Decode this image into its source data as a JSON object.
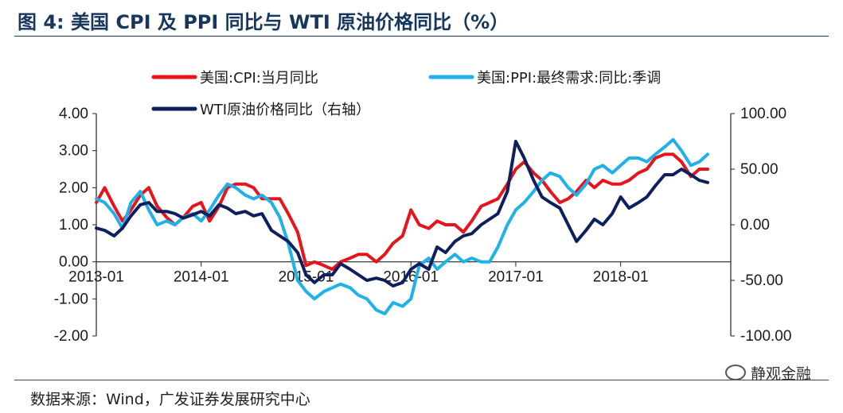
{
  "header": {
    "title": "图 4:  美国 CPI 及 PPI 同比与 WTI 原油价格同比（%）"
  },
  "footer": {
    "source": "数据来源：Wind，广发证券发展研究中心",
    "watermark": "静观金融"
  },
  "chart_data": {
    "type": "line",
    "title": "美国 CPI 及 PPI 同比与 WTI 原油价格同比（%）",
    "x_ticks": [
      "2013-01",
      "2014-01",
      "2015-01",
      "2016-01",
      "2017-01",
      "2018-01"
    ],
    "x_range": [
      2013.0,
      2018.9
    ],
    "left_axis": {
      "ylim": [
        -2.0,
        4.0
      ],
      "ticks": [
        "4.00",
        "3.00",
        "2.00",
        "1.00",
        "0.00",
        "-1.00",
        "-2.00"
      ]
    },
    "right_axis": {
      "ylim": [
        -100.0,
        100.0
      ],
      "ticks": [
        "100.00",
        "50.00",
        "0.00",
        "-50.00",
        "-100.00"
      ]
    },
    "legend_position": "top",
    "colors": {
      "cpi": "#e8141b",
      "ppi": "#1fb1e8",
      "wti": "#0d1f5c"
    },
    "series": [
      {
        "key": "cpi",
        "name": "美国:CPI:当月同比",
        "axis": "left",
        "x": [
          2013.0,
          2013.08,
          2013.17,
          2013.25,
          2013.33,
          2013.42,
          2013.5,
          2013.58,
          2013.67,
          2013.75,
          2013.83,
          2013.92,
          2014.0,
          2014.08,
          2014.17,
          2014.25,
          2014.33,
          2014.42,
          2014.5,
          2014.58,
          2014.67,
          2014.75,
          2014.83,
          2014.92,
          2015.0,
          2015.08,
          2015.17,
          2015.25,
          2015.33,
          2015.42,
          2015.5,
          2015.58,
          2015.67,
          2015.75,
          2015.83,
          2015.92,
          2016.0,
          2016.08,
          2016.17,
          2016.25,
          2016.33,
          2016.42,
          2016.5,
          2016.58,
          2016.67,
          2016.75,
          2016.83,
          2016.92,
          2017.0,
          2017.08,
          2017.17,
          2017.25,
          2017.33,
          2017.42,
          2017.5,
          2017.58,
          2017.67,
          2017.75,
          2017.83,
          2017.92,
          2018.0,
          2018.08,
          2018.17,
          2018.25,
          2018.33,
          2018.42,
          2018.5,
          2018.58,
          2018.67,
          2018.75,
          2018.83
        ],
        "values": [
          1.6,
          2.0,
          1.5,
          1.1,
          1.4,
          1.8,
          2.0,
          1.5,
          1.2,
          1.0,
          1.2,
          1.5,
          1.6,
          1.1,
          1.5,
          2.0,
          2.1,
          2.1,
          2.0,
          1.7,
          1.7,
          1.7,
          1.3,
          0.8,
          -0.1,
          0.0,
          -0.1,
          -0.2,
          0.0,
          0.1,
          0.2,
          0.2,
          0.0,
          0.2,
          0.5,
          0.7,
          1.4,
          1.0,
          0.9,
          1.1,
          1.0,
          1.0,
          0.8,
          1.1,
          1.5,
          1.6,
          1.7,
          2.1,
          2.5,
          2.7,
          2.4,
          2.2,
          1.9,
          1.6,
          1.7,
          1.9,
          2.2,
          2.0,
          2.2,
          2.1,
          2.1,
          2.2,
          2.4,
          2.5,
          2.8,
          2.9,
          2.9,
          2.7,
          2.3,
          2.5,
          2.5
        ]
      },
      {
        "key": "ppi",
        "name": "美国:PPI:最终需求:同比:季调",
        "axis": "left",
        "x": [
          2013.0,
          2013.08,
          2013.17,
          2013.25,
          2013.33,
          2013.42,
          2013.5,
          2013.58,
          2013.67,
          2013.75,
          2013.83,
          2013.92,
          2014.0,
          2014.08,
          2014.17,
          2014.25,
          2014.33,
          2014.42,
          2014.5,
          2014.58,
          2014.67,
          2014.75,
          2014.83,
          2014.92,
          2015.0,
          2015.08,
          2015.17,
          2015.25,
          2015.33,
          2015.42,
          2015.5,
          2015.58,
          2015.67,
          2015.75,
          2015.83,
          2015.92,
          2016.0,
          2016.08,
          2016.17,
          2016.25,
          2016.33,
          2016.42,
          2016.5,
          2016.58,
          2016.67,
          2016.75,
          2016.83,
          2016.92,
          2017.0,
          2017.08,
          2017.17,
          2017.25,
          2017.33,
          2017.42,
          2017.5,
          2017.58,
          2017.67,
          2017.75,
          2017.83,
          2017.92,
          2018.0,
          2018.08,
          2018.17,
          2018.25,
          2018.33,
          2018.42,
          2018.5,
          2018.58,
          2018.67,
          2018.75,
          2018.83
        ],
        "values": [
          1.7,
          1.6,
          1.3,
          0.9,
          1.6,
          1.9,
          1.4,
          1.0,
          1.1,
          1.0,
          1.2,
          1.3,
          1.1,
          1.4,
          1.8,
          2.1,
          2.0,
          1.8,
          1.7,
          1.8,
          1.6,
          1.2,
          0.5,
          -0.5,
          -0.8,
          -1.0,
          -0.8,
          -0.7,
          -0.6,
          -0.7,
          -0.9,
          -1.0,
          -1.3,
          -1.4,
          -1.1,
          -1.2,
          -1.0,
          -0.1,
          0.1,
          -0.2,
          0.0,
          0.2,
          0.0,
          0.1,
          0.0,
          0.0,
          0.4,
          1.0,
          1.4,
          1.6,
          1.9,
          2.2,
          2.4,
          2.3,
          2.0,
          1.8,
          2.1,
          2.5,
          2.6,
          2.4,
          2.6,
          2.8,
          2.8,
          2.7,
          2.9,
          3.1,
          3.3,
          3.0,
          2.6,
          2.7,
          2.9
        ]
      },
      {
        "key": "wti",
        "name": "WTI原油价格同比（右轴）",
        "axis": "right",
        "x": [
          2013.0,
          2013.08,
          2013.17,
          2013.25,
          2013.33,
          2013.42,
          2013.5,
          2013.58,
          2013.67,
          2013.75,
          2013.83,
          2013.92,
          2014.0,
          2014.08,
          2014.17,
          2014.25,
          2014.33,
          2014.42,
          2014.5,
          2014.58,
          2014.67,
          2014.75,
          2014.83,
          2014.92,
          2015.0,
          2015.08,
          2015.17,
          2015.25,
          2015.33,
          2015.42,
          2015.5,
          2015.58,
          2015.67,
          2015.75,
          2015.83,
          2015.92,
          2016.0,
          2016.08,
          2016.17,
          2016.25,
          2016.33,
          2016.42,
          2016.5,
          2016.58,
          2016.67,
          2016.75,
          2016.83,
          2016.92,
          2017.0,
          2017.08,
          2017.17,
          2017.25,
          2017.33,
          2017.42,
          2017.5,
          2017.58,
          2017.67,
          2017.75,
          2017.83,
          2017.92,
          2018.0,
          2018.08,
          2018.17,
          2018.25,
          2018.33,
          2018.42,
          2018.5,
          2018.58,
          2018.67,
          2018.75,
          2018.83
        ],
        "values": [
          -3,
          -5,
          -10,
          -3,
          8,
          18,
          20,
          12,
          12,
          10,
          6,
          9,
          12,
          8,
          18,
          15,
          10,
          12,
          8,
          10,
          -5,
          -10,
          -15,
          -25,
          -45,
          -52,
          -45,
          -45,
          -35,
          -40,
          -45,
          -50,
          -48,
          -50,
          -55,
          -52,
          -40,
          -35,
          -40,
          -20,
          -25,
          -15,
          -10,
          -8,
          0,
          5,
          10,
          30,
          75,
          60,
          40,
          25,
          20,
          15,
          0,
          -15,
          -5,
          5,
          0,
          10,
          25,
          15,
          20,
          25,
          35,
          45,
          45,
          50,
          45,
          40,
          38
        ]
      }
    ]
  }
}
